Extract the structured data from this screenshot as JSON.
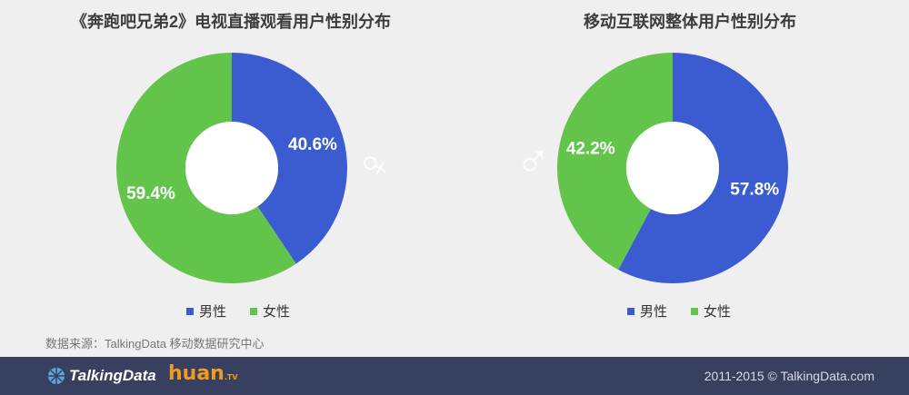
{
  "chart_data": [
    {
      "type": "pie",
      "title": "《奔跑吧兄弟2》电视直播观看用户性别分布",
      "categories": [
        "男性",
        "女性"
      ],
      "values": [
        40.6,
        59.4
      ],
      "labels": [
        "40.6%",
        "59.4%"
      ],
      "colors": [
        "#3b5bd1",
        "#63c44c"
      ],
      "donut": true,
      "legend": "bottom"
    },
    {
      "type": "pie",
      "title": "移动互联网整体用户性别分布",
      "categories": [
        "男性",
        "女性"
      ],
      "values": [
        57.8,
        42.2
      ],
      "labels": [
        "57.8%",
        "42.2%"
      ],
      "colors": [
        "#3b5bd1",
        "#63c44c"
      ],
      "donut": true,
      "legend": "bottom"
    }
  ],
  "legend": {
    "male": "男性",
    "female": "女性"
  },
  "source": "数据来源：TalkingData 移动数据研究中心",
  "footer": {
    "brand": "TalkingData",
    "partner": "huan",
    "partner_suffix": ".TV",
    "copyright": "2011-2015 © TalkingData.com"
  },
  "decor": {
    "female_symbol": "♀",
    "male_symbol": "♂"
  }
}
